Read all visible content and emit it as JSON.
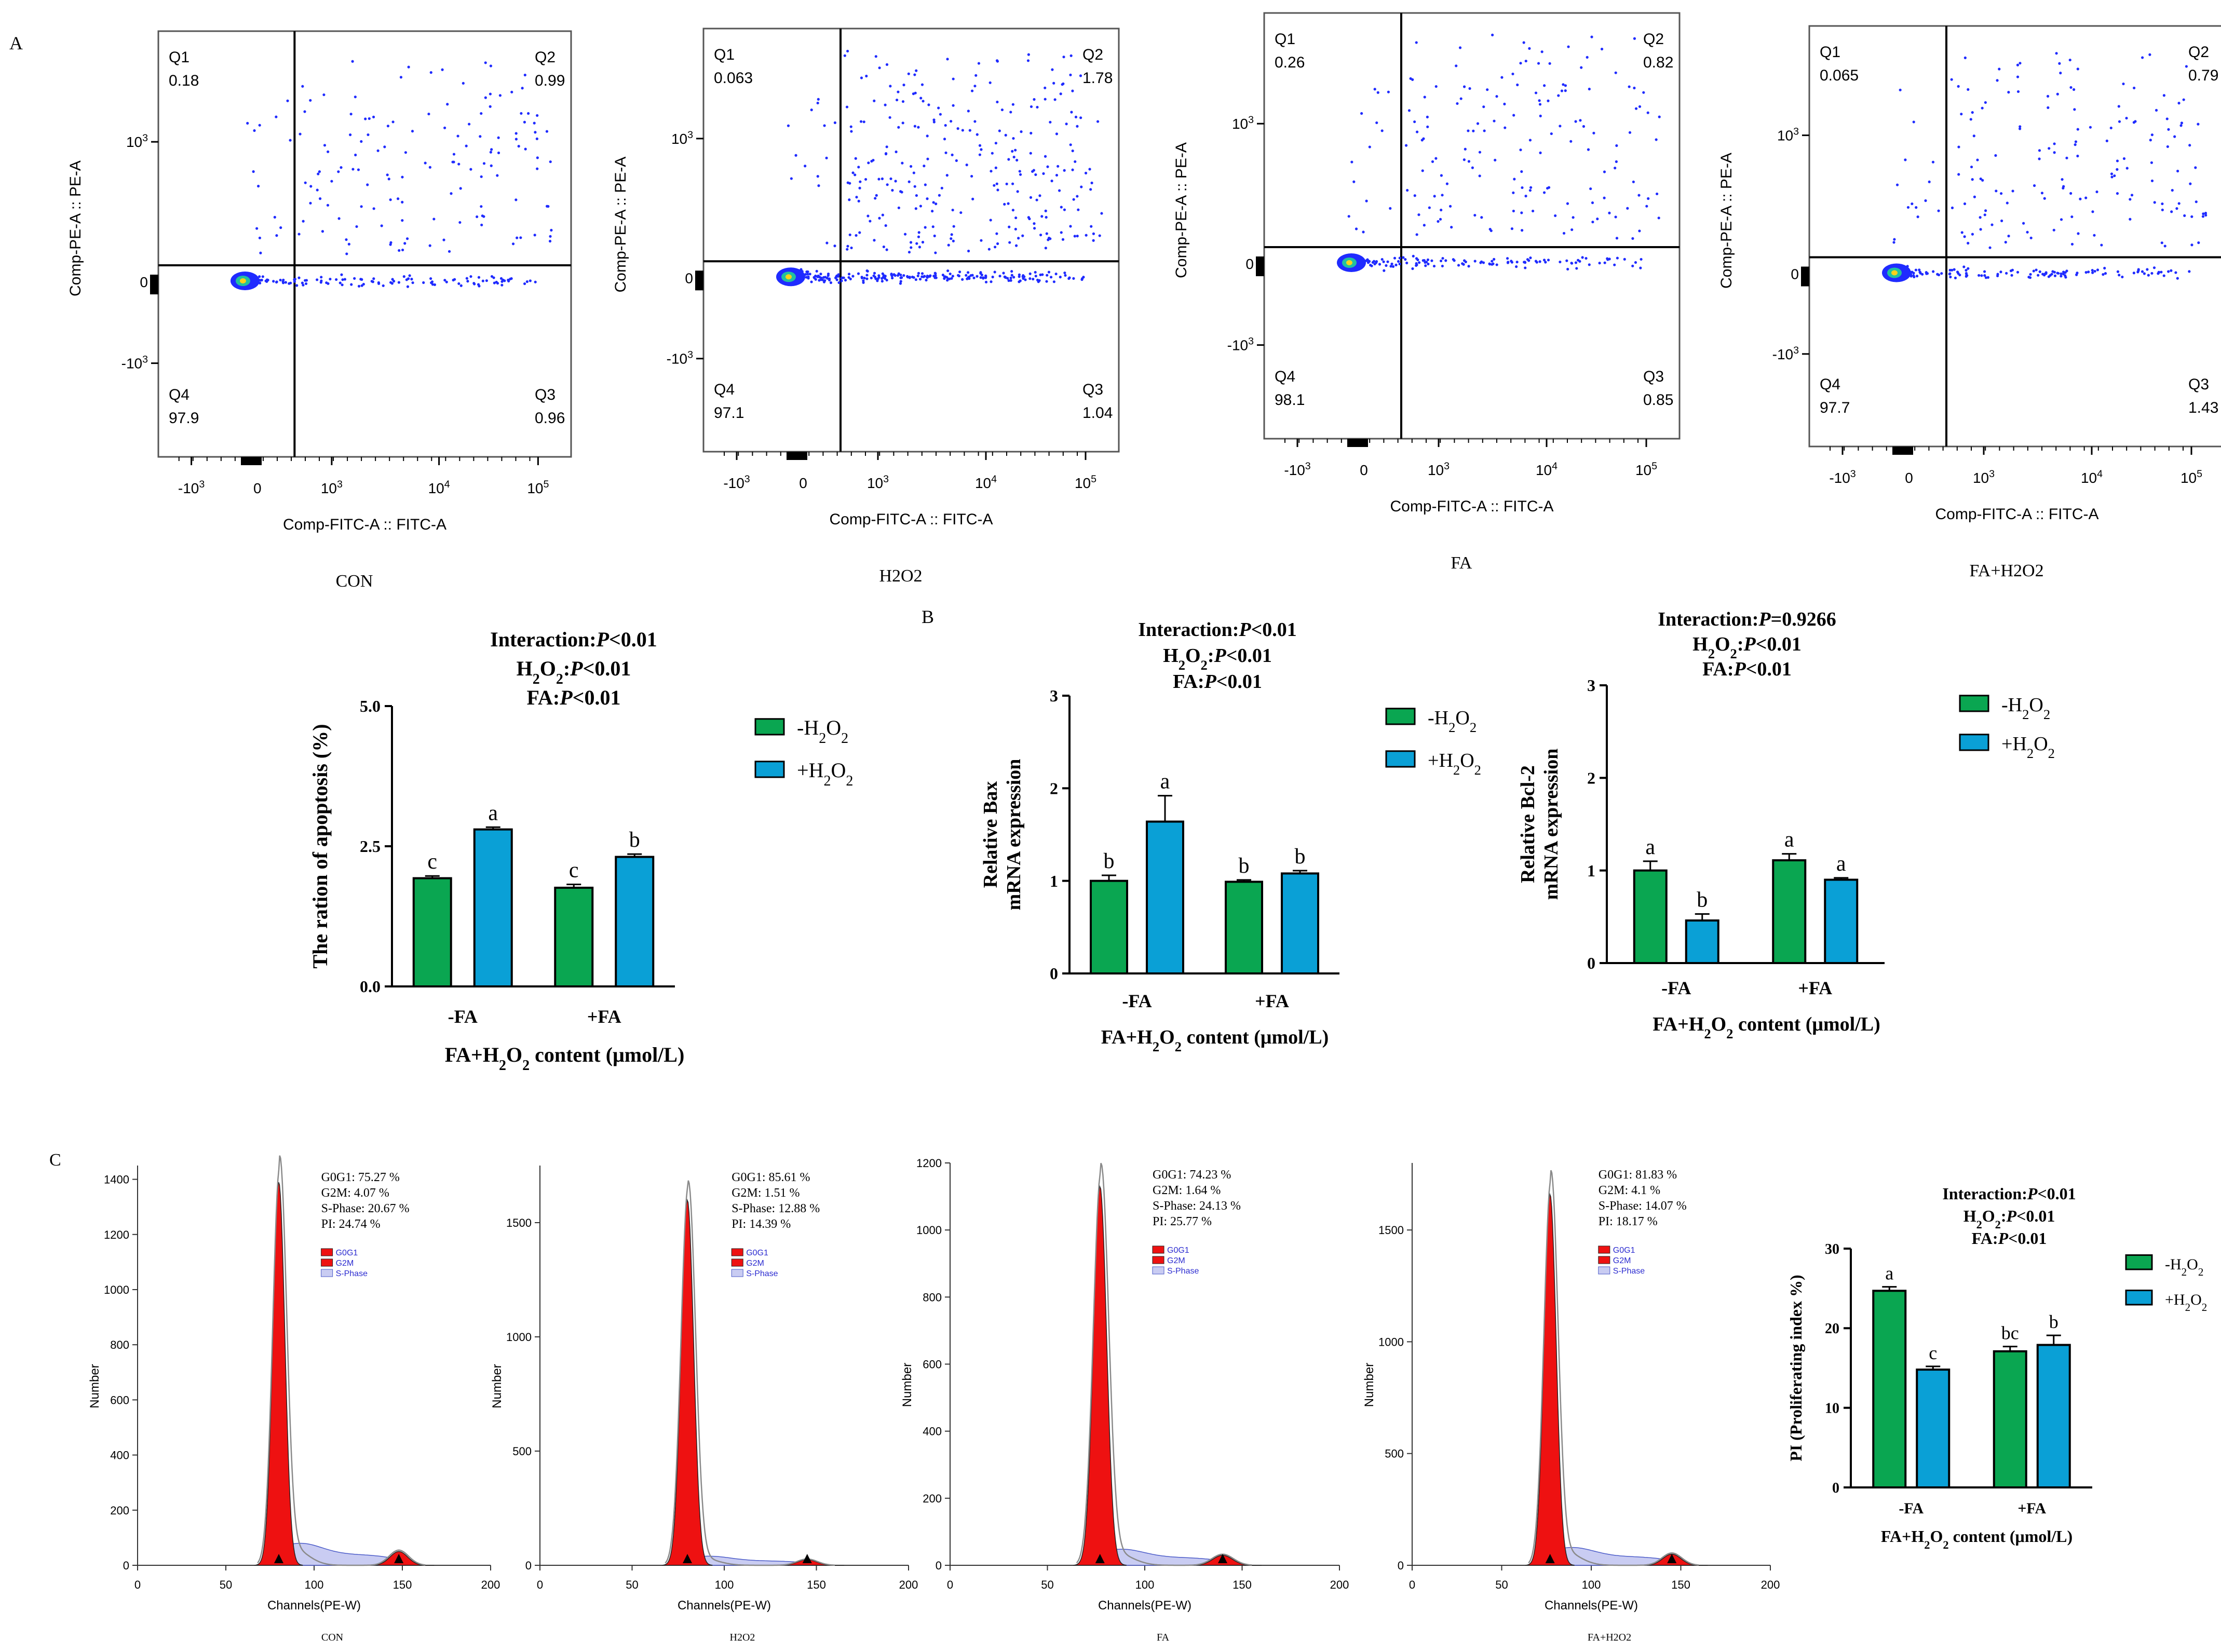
{
  "panel_labels": [
    "A",
    "B",
    "C"
  ],
  "colors": {
    "minus_h2o2": "#0aa651",
    "plus_h2o2": "#0aa0d6",
    "flow_dot": "#1f2bff",
    "cell_peak": "#ee1111",
    "s_phase": "#4a5ac8"
  },
  "chart_data": [
    {
      "type": "scatter",
      "name": "flow-CON",
      "caption": "CON",
      "xlabel": "Comp-FITC-A :: FITC-A",
      "ylabel": "Comp-PE-A :: PE-A",
      "x_ticks": [
        "-10^3",
        "0",
        "10^3",
        "10^4",
        "10^5"
      ],
      "y_ticks": [
        "10^3",
        "0",
        "-10^3"
      ],
      "quadrants": {
        "Q1": "0.18",
        "Q2": "0.99",
        "Q3": "0.96",
        "Q4": "97.9"
      }
    },
    {
      "type": "scatter",
      "name": "flow-H2O2",
      "caption": "H2O2",
      "xlabel": "Comp-FITC-A :: FITC-A",
      "ylabel": "Comp-PE-A :: PE-A",
      "x_ticks": [
        "-10^3",
        "0",
        "10^3",
        "10^4",
        "10^5"
      ],
      "y_ticks": [
        "10^3",
        "0",
        "-10^3"
      ],
      "quadrants": {
        "Q1": "0.063",
        "Q2": "1.78",
        "Q3": "1.04",
        "Q4": "97.1"
      }
    },
    {
      "type": "scatter",
      "name": "flow-FA",
      "caption": "FA",
      "xlabel": "Comp-FITC-A :: FITC-A",
      "ylabel": "Comp-PE-A :: PE-A",
      "x_ticks": [
        "-10^3",
        "0",
        "10^3",
        "10^4",
        "10^5"
      ],
      "y_ticks": [
        "10^3",
        "0",
        "-10^3"
      ],
      "quadrants": {
        "Q1": "0.26",
        "Q2": "0.82",
        "Q3": "0.85",
        "Q4": "98.1"
      }
    },
    {
      "type": "scatter",
      "name": "flow-FA+H2O2",
      "caption": "FA+H2O2",
      "xlabel": "Comp-FITC-A :: FITC-A",
      "ylabel": "Comp-PE-A :: PE-A",
      "x_ticks": [
        "-10^3",
        "0",
        "10^3",
        "10^4",
        "10^5"
      ],
      "y_ticks": [
        "10^3",
        "0",
        "-10^3"
      ],
      "quadrants": {
        "Q1": "0.065",
        "Q2": "0.79",
        "Q3": "1.43",
        "Q4": "97.7"
      }
    },
    {
      "type": "bar",
      "name": "apoptosis",
      "stats": [
        "Interaction:P<0.01",
        "H2O2:P<0.01",
        "FA:P<0.01"
      ],
      "ylabel": "The ration of apoptosis (%)",
      "xlabel": "FA+H2O2 content (μmol/L)",
      "categories": [
        "-FA",
        "+FA"
      ],
      "ylim": [
        0,
        5
      ],
      "yticks": [
        "0.0",
        "2.5",
        "5.0"
      ],
      "legend": [
        "-H2O2",
        "+H2O2"
      ],
      "series": [
        {
          "name": "-H2O2",
          "values": [
            1.93,
            1.76
          ],
          "errors": [
            0.04,
            0.06
          ],
          "letters": [
            "c",
            "c"
          ]
        },
        {
          "name": "+H2O2",
          "values": [
            2.8,
            2.31
          ],
          "errors": [
            0.04,
            0.05
          ],
          "letters": [
            "a",
            "b"
          ]
        }
      ]
    },
    {
      "type": "bar",
      "name": "bax",
      "stats": [
        "Interaction:P<0.01",
        "H2O2:P<0.01",
        "FA:P<0.01"
      ],
      "ylabel": [
        "Relative Bax",
        "mRNA expression"
      ],
      "xlabel": "FA+H2O2 content (μmol/L)",
      "categories": [
        "-FA",
        "+FA"
      ],
      "ylim": [
        0,
        3
      ],
      "yticks": [
        "0",
        "1",
        "2",
        "3"
      ],
      "legend": [
        "-H2O2",
        "+H2O2"
      ],
      "series": [
        {
          "name": "-H2O2",
          "values": [
            1.0,
            0.99
          ],
          "errors": [
            0.06,
            0.02
          ],
          "letters": [
            "b",
            "b"
          ]
        },
        {
          "name": "+H2O2",
          "values": [
            1.64,
            1.08
          ],
          "errors": [
            0.28,
            0.03
          ],
          "letters": [
            "a",
            "b"
          ]
        }
      ]
    },
    {
      "type": "bar",
      "name": "bcl2",
      "stats": [
        "Interaction:P=0.9266",
        "H2O2:P<0.01",
        "FA:P<0.01"
      ],
      "ylabel": [
        "Relative Bcl-2",
        "mRNA expression"
      ],
      "xlabel": "FA+H2O2 content (μmol/L)",
      "categories": [
        "-FA",
        "+FA"
      ],
      "ylim": [
        0,
        3
      ],
      "yticks": [
        "0",
        "1",
        "2",
        "3"
      ],
      "legend": [
        "-H2O2",
        "+H2O2"
      ],
      "series": [
        {
          "name": "-H2O2",
          "values": [
            1.0,
            1.11
          ],
          "errors": [
            0.1,
            0.07
          ],
          "letters": [
            "a",
            "a"
          ]
        },
        {
          "name": "+H2O2",
          "values": [
            0.46,
            0.9
          ],
          "errors": [
            0.07,
            0.02
          ],
          "letters": [
            "b",
            "a"
          ]
        }
      ]
    },
    {
      "type": "area",
      "name": "cycle-CON",
      "caption": "CON",
      "xlabel": "Channels(PE-W)",
      "ylabel": "Number",
      "xlim": [
        0,
        200
      ],
      "ylim": [
        0,
        1450
      ],
      "yticks": [
        0,
        200,
        400,
        600,
        800,
        1000,
        1200,
        1400
      ],
      "xticks": [
        0,
        50,
        100,
        150,
        200
      ],
      "g1_channel": 80,
      "g1_height": 1390,
      "g2_channel": 148,
      "g2_height": 50,
      "info": [
        "G0G1: 75.27 %",
        "G2M: 4.07 %",
        "S-Phase: 20.67 %",
        "PI: 24.74 %"
      ],
      "legend": [
        "G0G1",
        "G2M",
        "S-Phase"
      ]
    },
    {
      "type": "area",
      "name": "cycle-H2O2",
      "caption": "H2O2",
      "xlabel": "Channels(PE-W)",
      "ylabel": "Number",
      "xlim": [
        0,
        200
      ],
      "ylim": [
        0,
        1750
      ],
      "yticks": [
        0,
        500,
        1000,
        1500
      ],
      "xticks": [
        0,
        50,
        100,
        150,
        200
      ],
      "g1_channel": 80,
      "g1_height": 1600,
      "g2_channel": 145,
      "g2_height": 25,
      "info": [
        "G0G1: 85.61 %",
        "G2M: 1.51 %",
        "S-Phase: 12.88 %",
        "PI: 14.39 %"
      ],
      "legend": [
        "G0G1",
        "G2M",
        "S-Phase"
      ]
    },
    {
      "type": "area",
      "name": "cycle-FA",
      "caption": "FA",
      "xlabel": "Channels(PE-W)",
      "ylabel": "Number",
      "xlim": [
        0,
        200
      ],
      "ylim": [
        0,
        1200
      ],
      "yticks": [
        0,
        200,
        400,
        600,
        800,
        1000,
        1200
      ],
      "xticks": [
        0,
        50,
        100,
        150,
        200
      ],
      "g1_channel": 77,
      "g1_height": 1130,
      "g2_channel": 140,
      "g2_height": 30,
      "info": [
        "G0G1: 74.23 %",
        "G2M: 1.64 %",
        "S-Phase: 24.13 %",
        "PI: 25.77 %"
      ],
      "legend": [
        "G0G1",
        "G2M",
        "S-Phase"
      ]
    },
    {
      "type": "area",
      "name": "cycle-FA+H2O2",
      "caption": "FA+H2O2",
      "xlabel": "Channels(PE-W)",
      "ylabel": "Number",
      "xlim": [
        0,
        200
      ],
      "ylim": [
        0,
        1800
      ],
      "yticks": [
        0,
        500,
        1000,
        1500
      ],
      "xticks": [
        0,
        50,
        100,
        150,
        200
      ],
      "g1_channel": 77,
      "g1_height": 1660,
      "g2_channel": 145,
      "g2_height": 50,
      "info": [
        "G0G1: 81.83 %",
        "G2M: 4.1 %",
        "S-Phase: 14.07 %",
        "PI: 18.17 %"
      ],
      "legend": [
        "G0G1",
        "G2M",
        "S-Phase"
      ]
    },
    {
      "type": "bar",
      "name": "proliferation",
      "stats": [
        "Interaction:P<0.01",
        "H2O2:P<0.01",
        "FA:P<0.01"
      ],
      "ylabel": "PI (Proliferating index %)",
      "xlabel": "FA+H2O2 content (μmol/L)",
      "categories": [
        "-FA",
        "+FA"
      ],
      "ylim": [
        0,
        30
      ],
      "yticks": [
        "0",
        "10",
        "20",
        "30"
      ],
      "legend": [
        "-H2O2",
        "+H2O2"
      ],
      "series": [
        {
          "name": "-H2O2",
          "values": [
            24.7,
            17.1
          ],
          "errors": [
            0.5,
            0.6
          ],
          "letters": [
            "a",
            "bc"
          ]
        },
        {
          "name": "+H2O2",
          "values": [
            14.8,
            17.9
          ],
          "errors": [
            0.4,
            1.2
          ],
          "letters": [
            "c",
            "b"
          ]
        }
      ]
    }
  ]
}
